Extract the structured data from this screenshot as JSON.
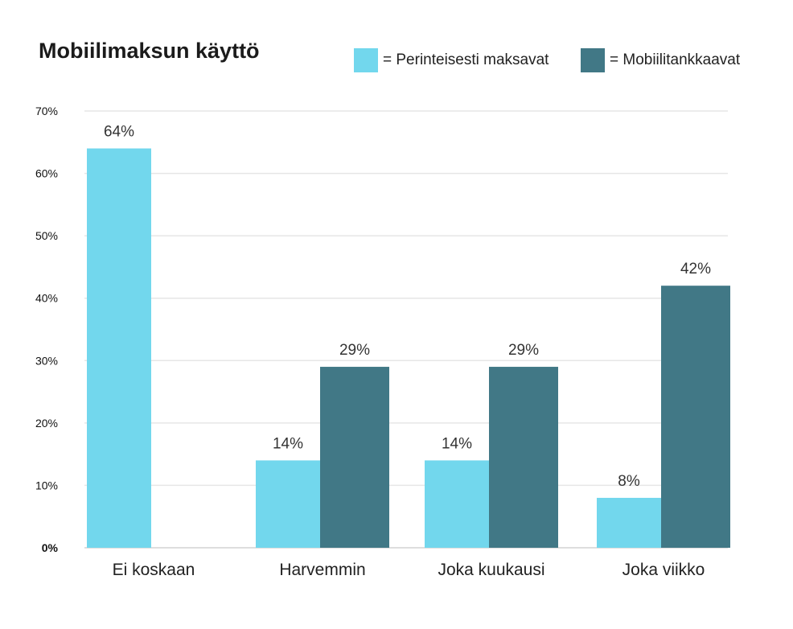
{
  "chart_data": {
    "type": "bar",
    "title": "Mobiilimaksun käyttö",
    "xlabel": "",
    "ylabel": "",
    "categories": [
      "Ei koskaan",
      "Harvemmin",
      "Joka kuukausi",
      "Joka viikko"
    ],
    "series": [
      {
        "name": "= Perinteisesti maksavat",
        "color": "#72d7ed",
        "values": [
          64,
          14,
          14,
          8
        ],
        "labels": [
          "64%",
          "14%",
          "14%",
          "8%"
        ]
      },
      {
        "name": "= Mobiilitankkaavat",
        "color": "#417886",
        "values": [
          null,
          29,
          29,
          42
        ],
        "labels": [
          "",
          "29%",
          "29%",
          "42%"
        ]
      }
    ],
    "ylim": [
      0,
      70
    ],
    "yticks": [
      0,
      10,
      20,
      30,
      40,
      50,
      60,
      70
    ],
    "ytick_labels": [
      "0%",
      "10%",
      "20%",
      "30%",
      "40%",
      "50%",
      "60%",
      "70%"
    ],
    "grid": true,
    "legend_position": "top-right"
  }
}
